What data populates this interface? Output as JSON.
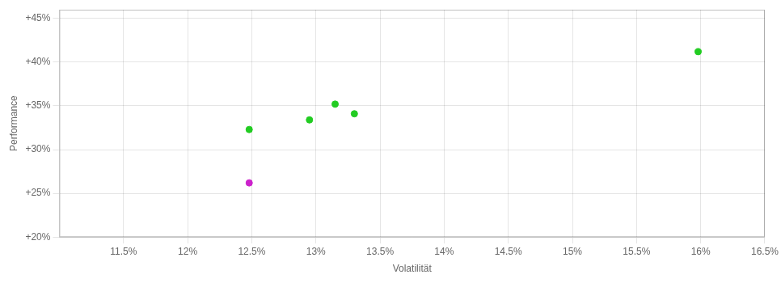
{
  "chart_data": {
    "type": "scatter",
    "xlabel": "Volatilität",
    "ylabel": "Performance",
    "xlim": [
      0.11,
      0.165
    ],
    "ylim": [
      0.2,
      0.46
    ],
    "xticks": [
      {
        "value": 0.115,
        "label": "11.5%"
      },
      {
        "value": 0.12,
        "label": "12%"
      },
      {
        "value": 0.125,
        "label": "12.5%"
      },
      {
        "value": 0.13,
        "label": "13%"
      },
      {
        "value": 0.135,
        "label": "13.5%"
      },
      {
        "value": 0.14,
        "label": "14%"
      },
      {
        "value": 0.145,
        "label": "14.5%"
      },
      {
        "value": 0.15,
        "label": "15%"
      },
      {
        "value": 0.155,
        "label": "15.5%"
      },
      {
        "value": 0.16,
        "label": "16%"
      },
      {
        "value": 0.165,
        "label": "16.5%"
      }
    ],
    "yticks": [
      {
        "value": 0.2,
        "label": "+20%"
      },
      {
        "value": 0.25,
        "label": "+25%"
      },
      {
        "value": 0.3,
        "label": "+30%"
      },
      {
        "value": 0.35,
        "label": "+35%"
      },
      {
        "value": 0.4,
        "label": "+40%"
      },
      {
        "value": 0.45,
        "label": "+45%"
      }
    ],
    "grid": true,
    "series": [
      {
        "color": "#22cc22",
        "marker": "circle",
        "x": [
          0.1248,
          0.1295,
          0.1315,
          0.133,
          0.1598
        ],
        "values": [
          0.323,
          0.334,
          0.352,
          0.341,
          0.412
        ]
      },
      {
        "color": "#cc22cc",
        "marker": "circle",
        "x": [
          0.1248
        ],
        "values": [
          0.262
        ]
      }
    ]
  }
}
